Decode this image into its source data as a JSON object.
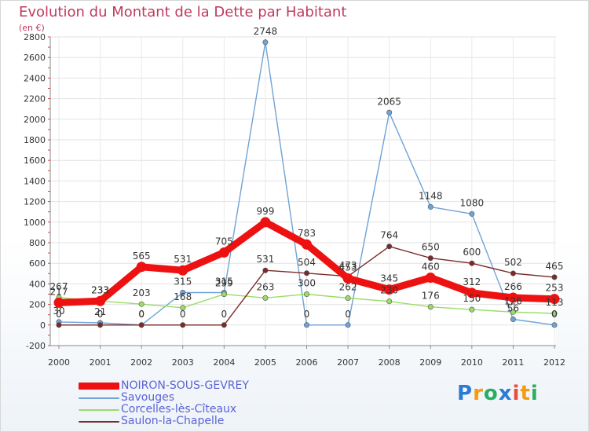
{
  "header": {
    "title": "Evolution du Montant de la Dette par Habitant",
    "unit": "(en €)"
  },
  "brand": {
    "letters": [
      "P",
      "r",
      "o",
      "x",
      "i",
      "t",
      "i"
    ],
    "colors": [
      "#2a7bd4",
      "#f39c12",
      "#27ae60",
      "#2a7bd4",
      "#e74c3c",
      "#f39c12",
      "#27ae60"
    ]
  },
  "chart_data": {
    "type": "line",
    "title": "Evolution du Montant de la Dette par Habitant",
    "ylabel": "(en €)",
    "xlabel": "",
    "x": [
      "2000",
      "2001",
      "2002",
      "2003",
      "2004",
      "2005",
      "2006",
      "2007",
      "2008",
      "2009",
      "2010",
      "2011",
      "2012"
    ],
    "ylim": [
      -200,
      2800
    ],
    "yticks": [
      -200,
      0,
      200,
      400,
      600,
      800,
      1000,
      1200,
      1400,
      1600,
      1800,
      2000,
      2200,
      2400,
      2600,
      2800
    ],
    "grid": true,
    "legend_position": "bottom-left",
    "series": [
      {
        "name": "NOIRON-SOUS-GEVREY",
        "color": "#ee1111",
        "values": [
          217,
          233,
          565,
          531,
          705,
          999,
          783,
          453,
          345,
          460,
          312,
          266,
          253
        ]
      },
      {
        "name": "Savouges",
        "color": "#6fa3d6",
        "values": [
          30,
          21,
          0,
          315,
          315,
          2748,
          0,
          0,
          2065,
          1148,
          1080,
          56,
          0
        ]
      },
      {
        "name": "Corcelles-lès-Cîteaux",
        "color": "#99dd66",
        "values": [
          267,
          233,
          203,
          168,
          299,
          263,
          300,
          262,
          230,
          176,
          150,
          126,
          113
        ]
      },
      {
        "name": "Saulon-la-Chapelle",
        "color": "#7a2a2a",
        "values": [
          0,
          0,
          0,
          0,
          0,
          531,
          504,
          473,
          764,
          650,
          600,
          502,
          465
        ]
      }
    ]
  }
}
